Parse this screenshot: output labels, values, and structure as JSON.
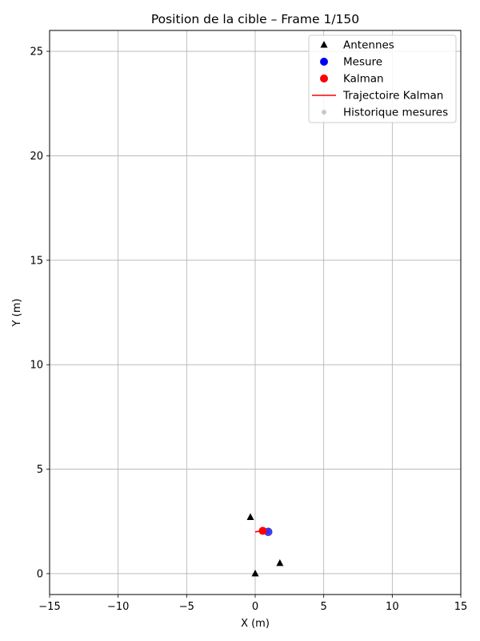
{
  "chart_data": {
    "type": "scatter",
    "title": "Position de la cible – Frame 1/150",
    "xlabel": "X (m)",
    "ylabel": "Y (m)",
    "xlim": [
      -15,
      15
    ],
    "ylim": [
      -1,
      26
    ],
    "xticks": [
      -15,
      -10,
      -5,
      0,
      5,
      10,
      15
    ],
    "yticks": [
      0,
      5,
      10,
      15,
      20,
      25
    ],
    "xtick_labels": [
      "−15",
      "−10",
      "−5",
      "0",
      "5",
      "10",
      "15"
    ],
    "ytick_labels": [
      "0",
      "5",
      "10",
      "15",
      "20",
      "25"
    ],
    "grid": true,
    "legend_position": "top-right",
    "series": [
      {
        "name": "Antennes",
        "marker": "triangle",
        "color": "#000000",
        "points": [
          [
            0,
            0
          ],
          [
            -0.35,
            2.7
          ],
          [
            1.8,
            0.5
          ]
        ]
      },
      {
        "name": "Mesure",
        "marker": "circle",
        "color": "#0000ff",
        "points": [
          [
            0.95,
            2.0
          ]
        ]
      },
      {
        "name": "Kalman",
        "marker": "circle",
        "color": "#ff0000",
        "points": [
          [
            0.55,
            2.05
          ]
        ]
      },
      {
        "name": "Trajectoire Kalman",
        "marker": "line",
        "color": "#ff0000",
        "points": [
          [
            0.0,
            2.0
          ],
          [
            0.55,
            2.05
          ]
        ]
      },
      {
        "name": "Historique mesures",
        "marker": "small-circle",
        "color": "#c8c8c8",
        "points": [
          [
            0.95,
            2.0
          ]
        ]
      }
    ]
  }
}
